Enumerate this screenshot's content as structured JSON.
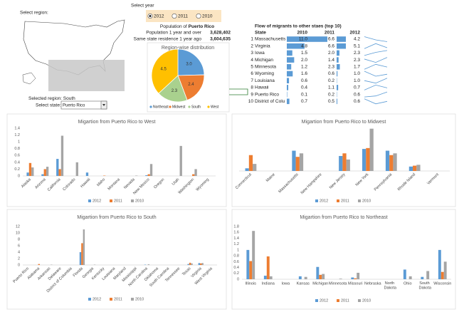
{
  "controls": {
    "region_label": "Select region:",
    "selected_region_label": "Selected region:",
    "selected_region": "South",
    "state_label": "Select state:",
    "state": "Puerto Rico",
    "year_label": "Select year",
    "years": [
      "2012",
      "2011",
      "2010"
    ],
    "selected_year": "2012"
  },
  "population": {
    "title": "Population of",
    "rows": [
      {
        "label": "Population 1 year and over",
        "value": "3,628,402"
      },
      {
        "label": "Same state residence 1 year ago",
        "value": "3,604,635"
      }
    ]
  },
  "table": {
    "title": "Flow of migrants to other staes (top 10)",
    "columns": [
      "State",
      "2010",
      "2011",
      "2012"
    ],
    "rows": [
      {
        "rank": "1",
        "state": "Massachusetts",
        "values": [
          11.0,
          6.6,
          4.2
        ],
        "value_labels": [
          "11.0",
          "6.6",
          "4.2"
        ]
      },
      {
        "rank": "2",
        "state": "Virginia",
        "values": [
          4.8,
          6.6,
          5.1
        ],
        "value_labels": [
          "4.8",
          "6.6",
          "5.1"
        ]
      },
      {
        "rank": "3",
        "state": "Iowa",
        "values": [
          1.5,
          2.0,
          2.3
        ],
        "value_labels": [
          "1.5",
          "2.0",
          "2.3"
        ]
      },
      {
        "rank": "4",
        "state": "Michigan",
        "values": [
          2.0,
          1.4,
          2.3
        ],
        "value_labels": [
          "2.0",
          "1.4",
          "2.3"
        ]
      },
      {
        "rank": "5",
        "state": "Minnesota",
        "values": [
          1.2,
          2.3,
          1.7
        ],
        "value_labels": [
          "1.2",
          "2.3",
          "1.7"
        ]
      },
      {
        "rank": "6",
        "state": "Wyoming",
        "values": [
          1.6,
          0.6,
          1.0
        ],
        "value_labels": [
          "1.6",
          "0.6",
          "1.0"
        ]
      },
      {
        "rank": "7",
        "state": "Louisiana",
        "values": [
          0.6,
          0.2,
          1.0
        ],
        "value_labels": [
          "0.6",
          "0.2",
          "1.0"
        ]
      },
      {
        "rank": "8",
        "state": "Hawaii",
        "values": [
          0.4,
          1.1,
          0.7
        ],
        "value_labels": [
          "0.4",
          "1.1",
          "0.7"
        ]
      },
      {
        "rank": "9",
        "state": "Puerto Rico",
        "values": [
          0.1,
          0.2,
          0.6
        ],
        "value_labels": [
          "0.1",
          "0.2",
          "0.6"
        ]
      },
      {
        "rank": "10",
        "state": "District of Colu",
        "values": [
          0.7,
          0.5,
          0.6
        ],
        "value_labels": [
          "0.7",
          "0.5",
          "0.6"
        ]
      }
    ]
  },
  "chart_data": [
    {
      "type": "pie",
      "title": "Region-wise distribution",
      "categories": [
        "Northeast",
        "Midwest",
        "South",
        "West"
      ],
      "values": [
        3.0,
        2.4,
        2.3,
        4.5
      ],
      "value_labels": [
        "3.0",
        "2.4",
        "2.3",
        "4.5"
      ],
      "colors": [
        "#5b9bd5",
        "#ed7d31",
        "#a9d18e",
        "#ffc000"
      ],
      "legend": "bottom"
    },
    {
      "type": "bar",
      "title": "Migartion from Puerto Rico to West",
      "categories": [
        "Alaska",
        "Arizona",
        "California",
        "Colorado",
        "Hawaii",
        "Idaho",
        "Montana",
        "Nevada",
        "New Mexico",
        "Oregon",
        "Utah",
        "Washington",
        "Wyoming"
      ],
      "series": [
        {
          "name": "2012",
          "color": "#5b9bd5",
          "values": [
            0.1,
            0.05,
            0.5,
            0,
            0.1,
            0,
            0,
            0,
            0.02,
            0,
            0,
            0,
            0
          ]
        },
        {
          "name": "2011",
          "color": "#ed7d31",
          "values": [
            0.38,
            0.2,
            0.2,
            0,
            0,
            0.01,
            0,
            0,
            0.05,
            0,
            0,
            0.05,
            0
          ]
        },
        {
          "name": "2010",
          "color": "#a5a5a5",
          "values": [
            0.25,
            0.27,
            1.18,
            0.4,
            0,
            0,
            0,
            0.01,
            0.35,
            0,
            0.88,
            0.2,
            0
          ]
        }
      ],
      "ylim": [
        0,
        1.4
      ],
      "yticks": [
        0,
        0.2,
        0.4,
        0.6,
        0.8,
        1,
        1.2,
        1.4
      ],
      "legend": "bottom"
    },
    {
      "type": "bar",
      "title": "Migartion from Puerto Rico to Midwest",
      "categories": [
        "Connecticut",
        "Maine",
        "Massachusetts",
        "New Hampshire",
        "New Jersey",
        "New York",
        "Pennsylvania",
        "Rhode Island",
        "Vermont"
      ],
      "series": [
        {
          "name": "2012",
          "color": "#5b9bd5",
          "values": [
            0.3,
            0,
            2.3,
            0,
            1.7,
            2.5,
            2.3,
            0.5,
            0
          ]
        },
        {
          "name": "2011",
          "color": "#ed7d31",
          "values": [
            1.8,
            0,
            1.6,
            0,
            2.0,
            2.6,
            1.8,
            0.6,
            0
          ]
        },
        {
          "name": "2010",
          "color": "#a5a5a5",
          "values": [
            0.8,
            0,
            2.0,
            0,
            1.3,
            4.8,
            2.0,
            0.7,
            0
          ]
        }
      ],
      "ylim": [
        0,
        5.5
      ],
      "legend": "bottom"
    },
    {
      "type": "bar",
      "title": "Migartion from Puerto Rico to South",
      "categories": [
        "Puerto Rico",
        "Alabama",
        "Arkansas",
        "Delaware",
        "District of Columbia",
        "Florida",
        "Georgia",
        "Kentucky",
        "Louisiana",
        "Maryland",
        "Mississippi",
        "North Carolina",
        "Oklahoma",
        "South Carolina",
        "Tennessee",
        "Texas",
        "Virginia",
        "West Virginia"
      ],
      "series": [
        {
          "name": "2012",
          "color": "#5b9bd5",
          "values": [
            0,
            0,
            0,
            0,
            0,
            4.0,
            0,
            0,
            0,
            0,
            0,
            0.1,
            0,
            0,
            0,
            0.3,
            0.6,
            0
          ]
        },
        {
          "name": "2011",
          "color": "#ed7d31",
          "values": [
            0,
            0.3,
            0,
            0,
            0,
            6.8,
            0,
            0,
            0,
            0,
            0,
            0,
            0,
            0,
            0,
            0.7,
            0.5,
            0
          ]
        },
        {
          "name": "2010",
          "color": "#a5a5a5",
          "values": [
            0,
            0,
            0.1,
            0,
            0,
            11.1,
            0.1,
            0,
            0,
            0,
            0,
            0.2,
            0,
            0,
            0,
            0.5,
            0.6,
            0
          ]
        }
      ],
      "ylim": [
        0,
        12
      ],
      "yticks": [
        0,
        2,
        4,
        6,
        8,
        10,
        12
      ],
      "legend": "bottom"
    },
    {
      "type": "bar",
      "title": "Migartion from Puerto Rico to Northeast",
      "categories": [
        "Illinois",
        "Indiana",
        "Iowa",
        "Kansas",
        "Michigan",
        "Minnesota",
        "Missouri",
        "Nebraska",
        "North Dakota",
        "Ohio",
        "South Dakota",
        "Wisconsin"
      ],
      "series": [
        {
          "name": "2012",
          "color": "#5b9bd5",
          "values": [
            1.0,
            0.12,
            0,
            0.1,
            0.42,
            0,
            0.06,
            0,
            0,
            0.33,
            0.08,
            1.0
          ]
        },
        {
          "name": "2011",
          "color": "#ed7d31",
          "values": [
            0.62,
            0.78,
            0,
            0,
            0.15,
            0,
            0.03,
            0,
            0,
            0,
            0,
            0.25
          ]
        },
        {
          "name": "2010",
          "color": "#a5a5a5",
          "values": [
            1.65,
            0.1,
            0,
            0.08,
            0.18,
            0.02,
            0.22,
            0,
            0,
            0.1,
            0.28,
            0.6
          ]
        }
      ],
      "ylim": [
        0,
        1.8
      ],
      "yticks": [
        0,
        0.2,
        0.4,
        0.6,
        0.8,
        1,
        1.2,
        1.4,
        1.6,
        1.8
      ],
      "legend": "bottom"
    }
  ]
}
